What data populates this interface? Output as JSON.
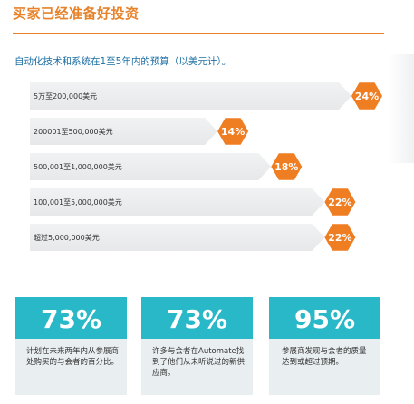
{
  "header": {
    "title": "买家已经准备好投资",
    "subtitle": "自动化技术和系统在1至5年内的预算（以美元计）。"
  },
  "chart_data": {
    "type": "bar",
    "orientation": "horizontal",
    "categories": [
      "5万至200,000美元",
      "200001至500,000美元",
      "500,001至1,000,000美元",
      "100,001至5,000,000美元",
      "超过5,000,000美元"
    ],
    "values": [
      24,
      14,
      18,
      22,
      22
    ],
    "value_labels": [
      "24%",
      "14%",
      "18%",
      "22%",
      "22%"
    ],
    "xlim": [
      0,
      24
    ],
    "bar_color": "#e7e8e9",
    "badge_color": "#ef7d22"
  },
  "stats": [
    {
      "value": "73%",
      "text": "计划在未来两年内从参展商处购买的与会者的百分比。"
    },
    {
      "value": "73%",
      "text": "许多与会者在Automate找到了他们从未听说过的新供应商。"
    },
    {
      "value": "95%",
      "text": "参展商发现与会者的质量达到或超过预期。"
    }
  ],
  "colors": {
    "accent": "#e8822a",
    "teal": "#29b8c8",
    "blue_text": "#1d6fa3"
  }
}
